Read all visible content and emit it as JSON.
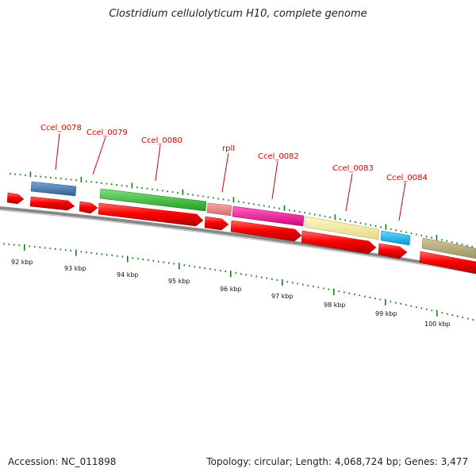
{
  "title": "Clostridium cellulolyticum H10, complete genome",
  "footer": {
    "accession": "Accession: NC_011898",
    "summary": "Topology: circular; Length: 4,068,724 bp; Genes: 3,477"
  },
  "colors": {
    "cds": "#ff0000",
    "backbone": "#888888",
    "tick": "#1a7a1a",
    "label": "#dd0000"
  },
  "gene_labels": [
    "Ccel_0078",
    "Ccel_0079",
    "Ccel_0080",
    "rplI",
    "Ccel_0082",
    "Ccel_0083",
    "Ccel_0084"
  ],
  "scale_labels": [
    "92 kbp",
    "93 kbp",
    "94 kbp",
    "95 kbp",
    "96 kbp",
    "97 kbp",
    "98 kbp",
    "99 kbp",
    "100 kbp"
  ]
}
